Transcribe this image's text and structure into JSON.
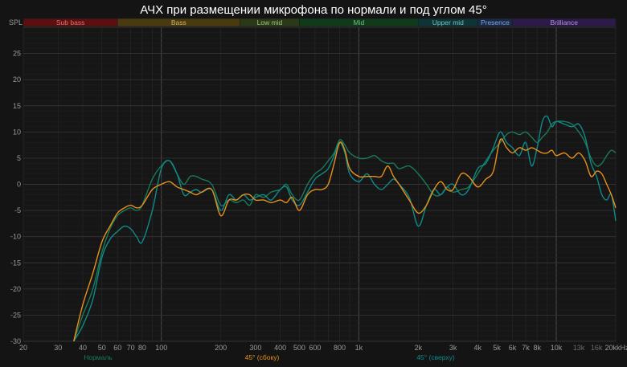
{
  "chart_data": {
    "type": "line",
    "title": "АЧХ при размещении микрофона по нормали и под углом 45°",
    "ylabel": "SPL",
    "x_unit_label": "kHz",
    "x_scale": "log",
    "xlim": [
      20,
      20000
    ],
    "ylim": [
      -30,
      30
    ],
    "grid": true,
    "legend_position": "bottom",
    "x_ticks": [
      {
        "value": 20,
        "label": "20"
      },
      {
        "value": 30,
        "label": "30"
      },
      {
        "value": 40,
        "label": "40"
      },
      {
        "value": 50,
        "label": "50"
      },
      {
        "value": 60,
        "label": "60"
      },
      {
        "value": 70,
        "label": "70"
      },
      {
        "value": 80,
        "label": "80"
      },
      {
        "value": 100,
        "label": "100"
      },
      {
        "value": 200,
        "label": "200"
      },
      {
        "value": 300,
        "label": "300"
      },
      {
        "value": 400,
        "label": "400"
      },
      {
        "value": 500,
        "label": "500"
      },
      {
        "value": 600,
        "label": "600"
      },
      {
        "value": 800,
        "label": "800"
      },
      {
        "value": 1000,
        "label": "1k"
      },
      {
        "value": 2000,
        "label": "2k"
      },
      {
        "value": 3000,
        "label": "3k"
      },
      {
        "value": 4000,
        "label": "4k"
      },
      {
        "value": 5000,
        "label": "5k"
      },
      {
        "value": 6000,
        "label": "6k"
      },
      {
        "value": 7000,
        "label": "7k"
      },
      {
        "value": 8000,
        "label": "8k"
      },
      {
        "value": 10000,
        "label": "10k"
      },
      {
        "value": 13000,
        "label": "13k"
      },
      {
        "value": 16000,
        "label": "16k"
      },
      {
        "value": 20000,
        "label": "20k"
      }
    ],
    "y_ticks": [
      25,
      20,
      15,
      10,
      5,
      0,
      -5,
      -10,
      -15,
      -20,
      -25,
      -30
    ],
    "bands": [
      {
        "name": "Sub bass",
        "from": 20,
        "to": 60,
        "fill": "#5a1010",
        "text": "#e07070"
      },
      {
        "name": "Bass",
        "from": 60,
        "to": 250,
        "fill": "#4a3a10",
        "text": "#d0b060"
      },
      {
        "name": "Low mid",
        "from": 250,
        "to": 500,
        "fill": "#2a3a18",
        "text": "#a0c080"
      },
      {
        "name": "Mid",
        "from": 500,
        "to": 2000,
        "fill": "#103a1a",
        "text": "#70c080"
      },
      {
        "name": "Upper mid",
        "from": 2000,
        "to": 4000,
        "fill": "#0f3438",
        "text": "#70c0c0"
      },
      {
        "name": "Presence",
        "from": 4000,
        "to": 6000,
        "fill": "#1a2a44",
        "text": "#80a0e0"
      },
      {
        "name": "Brilliance",
        "from": 6000,
        "to": 20000,
        "fill": "#2e1a48",
        "text": "#b090e0"
      }
    ],
    "series": [
      {
        "name": "Нормаль",
        "color": "#1a7a5a",
        "x": [
          36,
          40,
          45,
          50,
          55,
          60,
          65,
          70,
          75,
          80,
          90,
          100,
          110,
          120,
          130,
          140,
          150,
          160,
          180,
          200,
          220,
          240,
          260,
          280,
          300,
          330,
          360,
          400,
          430,
          460,
          500,
          550,
          600,
          650,
          700,
          750,
          800,
          850,
          900,
          1000,
          1100,
          1200,
          1300,
          1400,
          1500,
          1600,
          1800,
          2000,
          2200,
          2400,
          2600,
          2800,
          3000,
          3300,
          3600,
          4000,
          4400,
          4800,
          5200,
          5600,
          6000,
          6500,
          7000,
          7500,
          8000,
          8500,
          9000,
          9500,
          10000,
          11000,
          12000,
          13000,
          14000,
          15000,
          16000,
          17000,
          18000,
          19000,
          20000
        ],
        "y": [
          -30,
          -25,
          -20,
          -13,
          -8.5,
          -6,
          -5,
          -4.5,
          -5,
          -4,
          1,
          3.5,
          4.5,
          2,
          0,
          1.5,
          1.5,
          1,
          0,
          -4,
          -3,
          -3.5,
          -3,
          -4,
          -2,
          -2.5,
          -1.5,
          -1,
          0,
          -2,
          -3,
          0,
          2,
          3,
          4.5,
          6,
          8.5,
          7.5,
          6,
          5,
          5,
          5.5,
          4.5,
          4,
          4,
          3,
          3.5,
          2,
          0,
          -2,
          -2,
          -0.5,
          -1.5,
          -1,
          -0.5,
          2,
          4.5,
          6.5,
          8,
          9.5,
          10,
          9.5,
          10,
          9,
          8,
          9,
          10,
          11.5,
          12,
          12,
          11.5,
          10,
          8,
          5,
          3.5,
          4,
          5.5,
          6.5,
          6
        ]
      },
      {
        "name": "45° (сбоку)",
        "color": "#e8901a",
        "x": [
          36,
          40,
          45,
          50,
          55,
          60,
          65,
          70,
          75,
          80,
          90,
          100,
          110,
          120,
          130,
          140,
          150,
          160,
          180,
          200,
          220,
          240,
          260,
          280,
          300,
          330,
          360,
          400,
          430,
          460,
          500,
          550,
          600,
          650,
          700,
          750,
          800,
          850,
          900,
          1000,
          1100,
          1200,
          1300,
          1400,
          1500,
          1600,
          1800,
          2000,
          2200,
          2400,
          2600,
          2800,
          3000,
          3300,
          3600,
          4000,
          4400,
          4800,
          5200,
          5600,
          6000,
          6500,
          7000,
          7500,
          8000,
          8500,
          9000,
          9500,
          10000,
          11000,
          12000,
          13000,
          14000,
          15000,
          16000,
          17000,
          18000,
          19000,
          20000
        ],
        "y": [
          -30,
          -23,
          -17,
          -11,
          -8,
          -5.5,
          -4.5,
          -4,
          -4.5,
          -4,
          -1,
          0,
          0.5,
          -0.5,
          -1,
          -1.5,
          -2,
          -1.5,
          -1,
          -6,
          -3,
          -3,
          -2,
          -2,
          -3,
          -3,
          -3.5,
          -3,
          -3.5,
          -2.5,
          -5,
          -2,
          -1,
          -1,
          0,
          4,
          8,
          6.5,
          3,
          1.5,
          1.5,
          1.5,
          1.5,
          3.5,
          1.5,
          0,
          -3,
          -5.5,
          -4,
          -1,
          0.5,
          -1,
          -1,
          2,
          1.5,
          -0.5,
          1,
          2.5,
          8.5,
          7,
          6,
          7,
          6.5,
          7,
          6.5,
          6,
          6,
          6.5,
          5.5,
          6,
          5,
          6,
          4.5,
          1.5,
          2.5,
          2,
          0,
          -2,
          -4.5
        ]
      },
      {
        "name": "45° (сверху)",
        "color": "#0e8a8a",
        "x": [
          36,
          40,
          45,
          50,
          55,
          60,
          65,
          70,
          75,
          80,
          90,
          100,
          110,
          120,
          130,
          140,
          150,
          160,
          180,
          200,
          220,
          240,
          260,
          280,
          300,
          330,
          360,
          400,
          430,
          460,
          500,
          550,
          600,
          650,
          700,
          750,
          800,
          850,
          900,
          1000,
          1100,
          1200,
          1300,
          1400,
          1500,
          1600,
          1800,
          2000,
          2200,
          2400,
          2600,
          2800,
          3000,
          3300,
          3600,
          4000,
          4400,
          4800,
          5200,
          5600,
          6000,
          6500,
          7000,
          7500,
          8000,
          8500,
          9000,
          9500,
          10000,
          11000,
          12000,
          13000,
          14000,
          15000,
          16000,
          17000,
          18000,
          19000,
          20000
        ],
        "y": [
          -30,
          -27,
          -22,
          -14,
          -10.5,
          -9,
          -8,
          -8.5,
          -10,
          -11,
          -5,
          3,
          4.5,
          2,
          -2,
          -1.5,
          -1,
          -1.5,
          -1,
          -5,
          -2,
          -3,
          -2,
          -3,
          -2.5,
          -2,
          -3,
          -1,
          -0.5,
          -3,
          -4,
          -1.5,
          1,
          2,
          3,
          5.5,
          8,
          6,
          2,
          0.5,
          2,
          0,
          -1,
          0,
          1,
          0,
          -2.5,
          -8,
          -4,
          -1,
          -2,
          -0.5,
          0,
          -2,
          -1,
          3,
          4,
          7,
          10,
          8,
          7,
          5.5,
          8,
          3.5,
          7,
          12,
          13,
          11,
          12,
          11.5,
          11,
          11.5,
          9,
          4,
          1.5,
          -2,
          -3,
          -2,
          -7
        ]
      }
    ]
  }
}
